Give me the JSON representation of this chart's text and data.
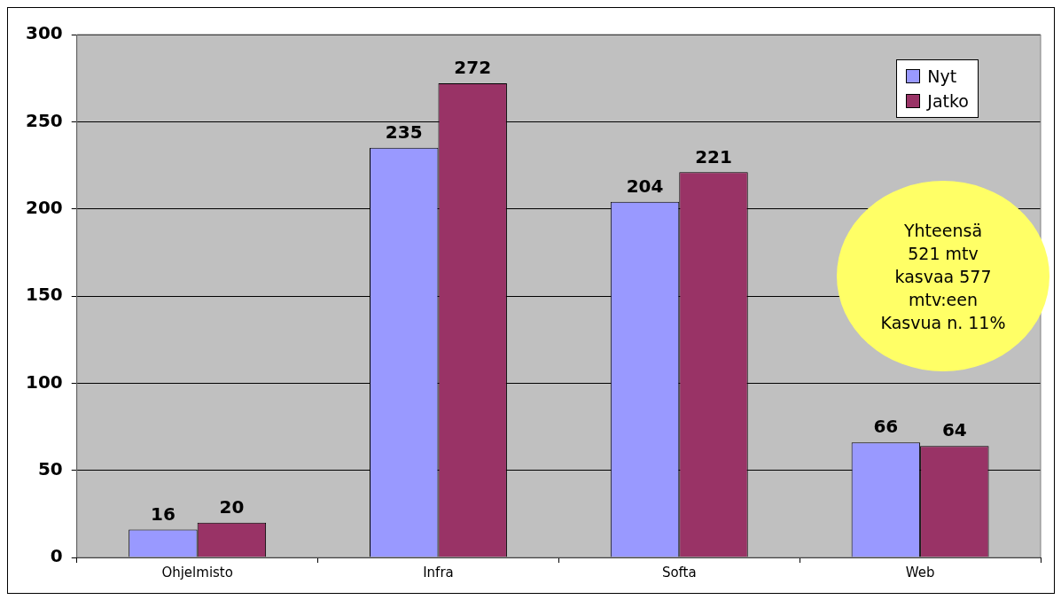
{
  "chart_data": {
    "type": "bar",
    "categories": [
      "Ohjelmisto",
      "Infra",
      "Softa",
      "Web"
    ],
    "series": [
      {
        "name": "Nyt",
        "color": "#9999ff",
        "values": [
          16,
          235,
          204,
          66
        ]
      },
      {
        "name": "Jatko",
        "color": "#993366",
        "values": [
          20,
          272,
          221,
          64
        ]
      }
    ],
    "ylim": [
      0,
      300
    ],
    "yticks": [
      0,
      50,
      100,
      150,
      200,
      250,
      300
    ],
    "grid": "y",
    "legend": "top right",
    "data_labels": true,
    "annotations": [
      "Yhteensä\n521 mtv\nkasvaa 577\nmtv:een\nKasvua n. 11%"
    ]
  }
}
